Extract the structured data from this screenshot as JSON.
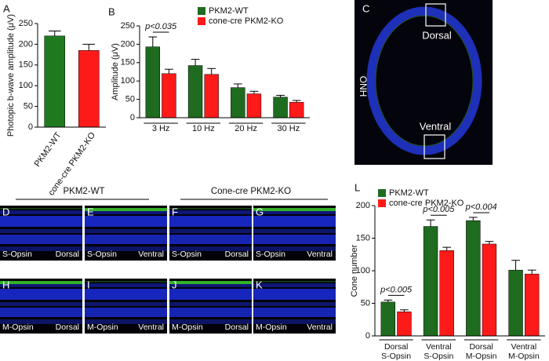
{
  "chart_data": [
    {
      "type": "bar",
      "panel": "A",
      "ylabel": "Photopic b-wave amplitude (μV)",
      "categories": [
        "PKM2-WT",
        "cone-cre PKM2-KO"
      ],
      "values": [
        220,
        185
      ],
      "errors": [
        12,
        15
      ],
      "colors": [
        "#1f7a1f",
        "#ff1a1a"
      ],
      "ylim": [
        0,
        250
      ],
      "yticks": [
        0,
        50,
        100,
        150,
        200,
        250
      ]
    },
    {
      "type": "grouped-bar",
      "panel": "B",
      "ylabel": "Amplitude (μV)",
      "categories": [
        "3 Hz",
        "10 Hz",
        "20 Hz",
        "30 Hz"
      ],
      "series": [
        {
          "name": "PKM2-WT",
          "color": "#1f6b1f",
          "values": [
            193,
            142,
            82,
            56
          ],
          "errors": [
            27,
            17,
            10,
            5
          ]
        },
        {
          "name": "cone-cre PKM2-KO",
          "color": "#ff1a1a",
          "values": [
            120,
            118,
            65,
            42
          ],
          "errors": [
            12,
            16,
            7,
            5
          ]
        }
      ],
      "annotations": [
        "p<0.035"
      ],
      "ylim": [
        0,
        250
      ],
      "yticks": [
        0,
        50,
        100,
        150,
        200,
        250
      ]
    },
    {
      "type": "grouped-bar",
      "panel": "L",
      "ylabel": "Cone number",
      "categories": [
        "Dorsal\nS-Opsin",
        "Ventral\nS-Opsin",
        "Dorsal\nM-Opsin",
        "Ventral\nM-Opsin"
      ],
      "series": [
        {
          "name": "PKM2-WT",
          "color": "#1f6b1f",
          "values": [
            52,
            168,
            177,
            101
          ],
          "errors": [
            3,
            10,
            5,
            15
          ]
        },
        {
          "name": "cone-cre PKM2-KO",
          "color": "#ff1a1a",
          "values": [
            37,
            131,
            141,
            95
          ],
          "errors": [
            3,
            5,
            4,
            6
          ]
        }
      ],
      "annotations": [
        "p<0.005",
        "p<0.005",
        "p<0.004"
      ],
      "ylim": [
        0,
        200
      ],
      "yticks": [
        0,
        50,
        100,
        150,
        200
      ]
    }
  ],
  "retina": {
    "label": "C",
    "dorsal": "Dorsal",
    "ventral": "Ventral",
    "onh": "ONH"
  },
  "groups": [
    "PKM2-WT",
    "Cone-cre PKM2-KO"
  ],
  "images": [
    {
      "label": "D",
      "stain": "S-Opsin",
      "region": "Dorsal"
    },
    {
      "label": "E",
      "stain": "S-Opsin",
      "region": "Ventral"
    },
    {
      "label": "F",
      "stain": "S-Opsin",
      "region": "Dorsal"
    },
    {
      "label": "G",
      "stain": "S-Opsin",
      "region": "Ventral"
    },
    {
      "label": "H",
      "stain": "M-Opsin",
      "region": "Dorsal"
    },
    {
      "label": "I",
      "stain": "M-Opsin",
      "region": "Ventral"
    },
    {
      "label": "J",
      "stain": "M-Opsin",
      "region": "Dorsal"
    },
    {
      "label": "K",
      "stain": "M-Opsin",
      "region": "Ventral"
    }
  ]
}
